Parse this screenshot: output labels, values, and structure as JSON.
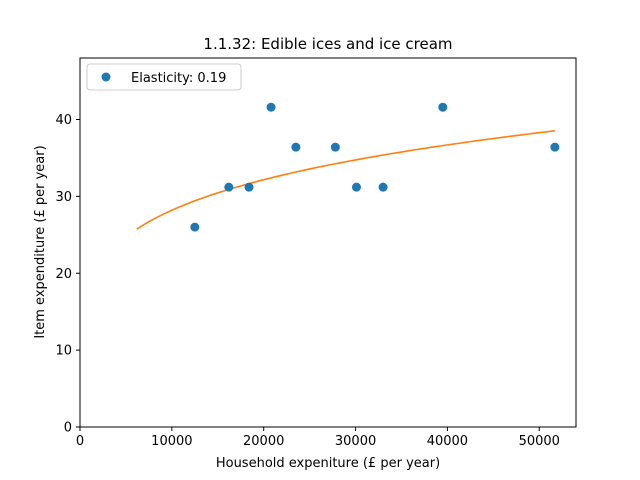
{
  "chart_data": {
    "type": "scatter",
    "title": "1.1.32: Edible ices and ice cream",
    "xlabel": "Household expeniture (£ per year)",
    "ylabel": "Item expenditure (£ per year)",
    "xlim": [
      0,
      54000
    ],
    "ylim": [
      0,
      48
    ],
    "xticks": [
      0,
      10000,
      20000,
      30000,
      40000,
      50000
    ],
    "yticks": [
      0,
      10,
      20,
      30,
      40
    ],
    "grid": false,
    "legend_position": "top-left",
    "series": [
      {
        "name": "Elasticity: 0.19",
        "kind": "scatter",
        "color": "#1f77b4",
        "x": [
          12500,
          16200,
          18400,
          20800,
          23500,
          27800,
          30100,
          33000,
          39500,
          51700
        ],
        "y": [
          26.0,
          31.2,
          31.2,
          41.6,
          36.4,
          36.4,
          31.2,
          31.2,
          41.6,
          36.4
        ]
      },
      {
        "kind": "line",
        "color": "#ff7f0e",
        "fit": {
          "type": "power",
          "coef": 4.9,
          "exponent": 0.19,
          "x_start": 6200,
          "x_end": 51700
        }
      }
    ]
  }
}
